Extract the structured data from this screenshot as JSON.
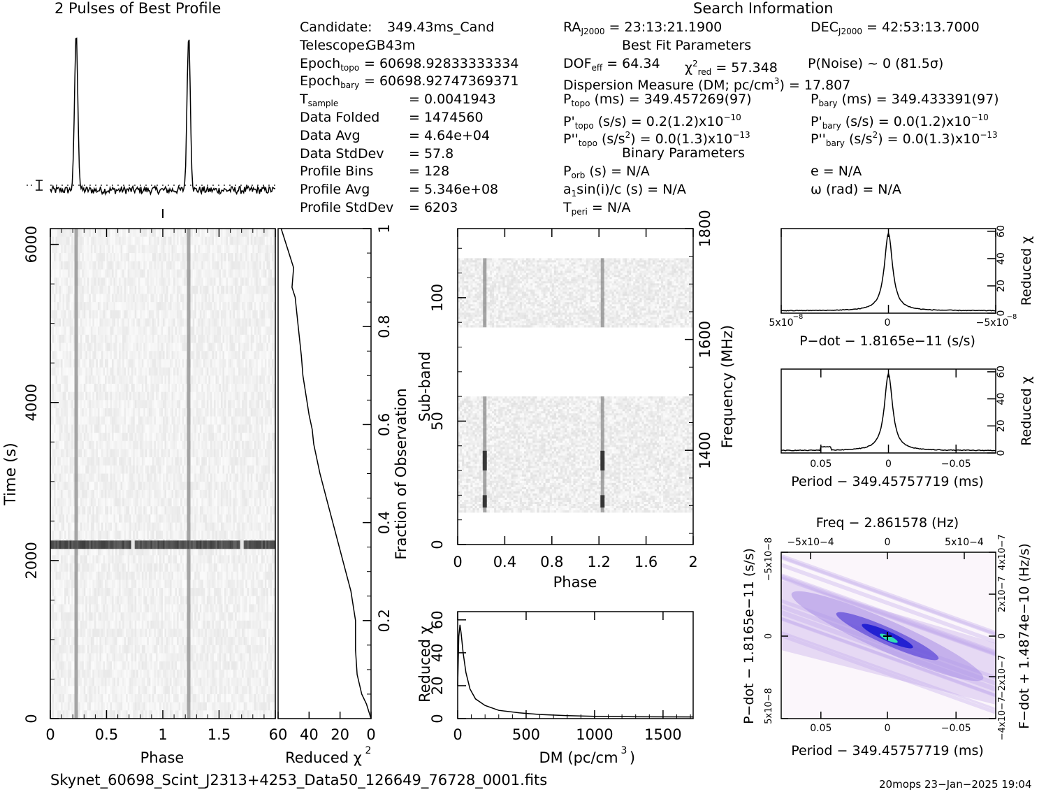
{
  "headers": {
    "profile_title": "2 Pulses of Best Profile",
    "search_title": "Search Information",
    "best_fit": "Best Fit Parameters",
    "binary": "Binary Parameters"
  },
  "info_left": [
    {
      "k": "Candidate:",
      "v": "349.43ms_Cand"
    },
    {
      "k": "Telescope:",
      "v": "GB43m"
    },
    {
      "k": "Epoch",
      "sub": "topo",
      "v": "= 60698.92833333334"
    },
    {
      "k": "Epoch",
      "sub": "bary",
      "v": "= 60698.92747369371"
    },
    {
      "k": "T",
      "sub": "sample",
      "v": "=   0.0041943"
    },
    {
      "k": "Data Folded",
      "v": "=   1474560"
    },
    {
      "k": "Data Avg",
      "v": "=   4.64e+04"
    },
    {
      "k": "Data StdDev",
      "v": "=   57.8"
    },
    {
      "k": "Profile Bins",
      "v": "=   128"
    },
    {
      "k": "Profile Avg",
      "v": "=   5.346e+08"
    },
    {
      "k": "Profile StdDev",
      "v": "=   6203"
    }
  ],
  "info_mid": {
    "ra": "RA",
    "ra_sub": "J2000",
    "ra_val": " = 23:13:21.1900",
    "dec": "DEC",
    "dec_sub": "J2000",
    "dec_val": " = 42:53:13.7000",
    "dof": "DOF",
    "dof_sub": "eff",
    "dof_val": " = 64.34",
    "chi": "χ",
    "chi_sup": "2",
    "chi_sub": "red",
    "chi_val": " = 57.348",
    "pnoise": "P(Noise) ~ 0    (81.5σ)",
    "dm_line": "Dispersion Measure (DM; pc/cm",
    "dm_sup": "3",
    "dm_val": ") = 17.807",
    "ptopo": "P",
    "ptopo_sub": "topo",
    "ptopo_val": " (ms) =  349.457269(97)",
    "pbary": "P",
    "pbary_sub": "bary",
    "pbary_val": " (ms) =  349.433391(97)",
    "pdtopo": "P'",
    "pdtopo_sub": "topo",
    "pdtopo_val": " (s/s) =  0.2(1.2)x10",
    "pdtopo_exp": "−10",
    "pdbary": "P'",
    "pdbary_sub": "bary",
    "pdbary_val": " (s/s) = 0.0(1.2)x10",
    "pdbary_exp": "−10",
    "pddtopo": "P''",
    "pddtopo_sub": "topo",
    "pddtopo_val": " (s/s",
    "pddtopo_sup": "2",
    "pddtopo_val2": ") = 0.0(1.3)x10",
    "pddtopo_exp": "−13",
    "pddbary": "P''",
    "pddbary_sub": "bary",
    "pddbary_val": " (s/s",
    "pddbary_sup": "2",
    "pddbary_val2": ") = 0.0(1.3)x10",
    "pddbary_exp": "−13",
    "porb": "P",
    "porb_sub": "orb",
    "porb_val": " (s) = N/A",
    "ecc": "e = N/A",
    "a1": "a",
    "a1_sub": "1",
    "a1_val": "sin(i)/c (s) = N/A",
    "omega": "ω (rad) = N/A",
    "tperi": "T",
    "tperi_sub": "peri",
    "tperi_val": " = N/A"
  },
  "footer": {
    "filename": "Skynet_60698_Scint_J2313+4253_Data50_126649_76728_0001.fits",
    "stamp": "20mops 23−Jan−2025 19:04"
  },
  "chart_data": [
    {
      "id": "profile",
      "type": "line",
      "title": "2 Pulses of Best Profile",
      "x": "phase 0-2",
      "peaks_phase": [
        0.23,
        1.23
      ],
      "baseline_noise": true
    },
    {
      "id": "time_phase",
      "type": "heatmap",
      "xlabel": "Phase",
      "ylabel": "Time (s)",
      "xlim": [
        0,
        2
      ],
      "ylim": [
        0,
        6200
      ],
      "xticks": [
        "0",
        "0.5",
        "1",
        "1.5"
      ],
      "yticks": [
        "0",
        "2000",
        "4000",
        "6000"
      ],
      "pulse_phase": [
        0.23,
        1.23
      ],
      "dark_band_time": 2200
    },
    {
      "id": "redchi_time",
      "type": "line",
      "xlabel": "Reduced χ2",
      "ylabel_right": "Fraction of Observation",
      "xlim": [
        60,
        0
      ],
      "ylim": [
        0,
        1
      ],
      "xticks": [
        "60",
        "40",
        "20",
        "0"
      ],
      "yticks_right": [
        "0.2",
        "0.4",
        "0.6",
        "0.8",
        "1"
      ],
      "curve": [
        [
          0,
          0
        ],
        [
          1,
          0.01
        ],
        [
          3,
          0.03
        ],
        [
          6,
          0.05
        ],
        [
          9,
          0.09
        ],
        [
          10,
          0.14
        ],
        [
          10,
          0.2
        ],
        [
          13,
          0.26
        ],
        [
          18,
          0.32
        ],
        [
          23,
          0.38
        ],
        [
          28,
          0.44
        ],
        [
          33,
          0.5
        ],
        [
          37,
          0.56
        ],
        [
          38,
          0.59
        ],
        [
          40,
          0.62
        ],
        [
          42,
          0.66
        ],
        [
          44,
          0.7
        ],
        [
          45,
          0.74
        ],
        [
          47,
          0.8
        ],
        [
          49,
          0.86
        ],
        [
          51,
          0.88
        ],
        [
          50,
          0.92
        ],
        [
          54,
          0.96
        ],
        [
          58,
          1.0
        ]
      ]
    },
    {
      "id": "subband_phase",
      "type": "heatmap",
      "xlabel": "Phase",
      "ylabel": "Sub-band",
      "ylabel_right": "Frequency (MHz)",
      "xlim": [
        0,
        2
      ],
      "ylim": [
        0,
        128
      ],
      "xticks": [
        "0",
        "0.4",
        "0.8",
        "1.2",
        "1.6",
        "2"
      ],
      "yticks": [
        "0",
        "50",
        "100"
      ],
      "yticks_right": [
        "1400",
        "1600",
        "1800"
      ],
      "filled_bands": [
        [
          13,
          60
        ],
        [
          88,
          116
        ]
      ],
      "pulse_phase": [
        0.23,
        1.23
      ]
    },
    {
      "id": "dm_curve",
      "type": "line",
      "xlabel": "DM (pc/cm3)",
      "ylabel": "Reduced χ2",
      "xlim": [
        0,
        1720
      ],
      "ylim": [
        0,
        60
      ],
      "xticks": [
        "0",
        "500",
        "1000",
        "1500"
      ],
      "yticks": [
        "0",
        "20",
        "40",
        "60"
      ],
      "curve": [
        [
          0,
          20
        ],
        [
          8,
          50
        ],
        [
          17,
          57
        ],
        [
          25,
          52
        ],
        [
          40,
          40
        ],
        [
          60,
          28
        ],
        [
          90,
          18
        ],
        [
          130,
          12
        ],
        [
          200,
          8
        ],
        [
          300,
          5
        ],
        [
          450,
          3.5
        ],
        [
          600,
          2.5
        ],
        [
          800,
          1.8
        ],
        [
          1000,
          1.4
        ],
        [
          1300,
          1.1
        ],
        [
          1720,
          1.0
        ]
      ]
    },
    {
      "id": "pdot_curve",
      "type": "line",
      "xlabel": "P−dot − 1.8165e−11 (s/s)",
      "ylabel": "Reduced χ2",
      "xlim": [
        5e-08,
        -5e-08
      ],
      "ylim": [
        0,
        60
      ],
      "xticks": [
        "5x10−8",
        "0",
        "−5x10−8"
      ],
      "yticks": [
        "0",
        "20",
        "40",
        "60"
      ],
      "peak": 57
    },
    {
      "id": "period_curve",
      "type": "line",
      "xlabel": "Period − 349.45757719 (ms)",
      "ylabel": "Reduced χ2",
      "xlim": [
        0.08,
        -0.08
      ],
      "ylim": [
        0,
        60
      ],
      "xticks": [
        "0.05",
        "0",
        "−0.05"
      ],
      "yticks": [
        "0",
        "20",
        "40",
        "60"
      ],
      "peak": 57
    },
    {
      "id": "period_pdot",
      "type": "heatmap",
      "xlabel": "Period − 349.45757719 (ms)",
      "ylabel": "P−dot − 1.8165e−11 (s/s)",
      "top_label": "Freq − 2.861578 (Hz)",
      "right_label": "F−dot + 1.4874e−10 (Hz/s)",
      "xticks": [
        "0.05",
        "0",
        "−0.05"
      ],
      "yticks": [
        "5x10−8",
        "0",
        "−5x10−8"
      ],
      "top_ticks": [
        "−5x10−4",
        "0",
        "5x10−4"
      ],
      "right_ticks": [
        "−4x10−7",
        "−2x10−7",
        "0",
        "2x10−7",
        "4x10−7"
      ]
    }
  ]
}
